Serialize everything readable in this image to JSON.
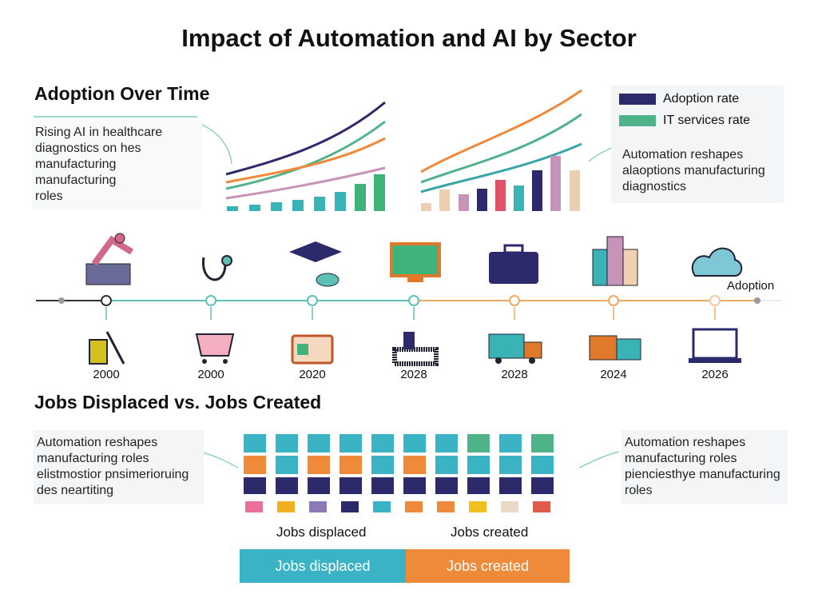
{
  "title": "Impact of Automation and AI by Sector",
  "adoption": {
    "heading": "Adoption Over Time",
    "note_left": [
      "Rising AI in healthcare",
      "diagnostics on hes",
      "manufacturing manufacturing",
      "roles"
    ],
    "legend": [
      "Adoption rate",
      "IT services rate"
    ],
    "note_right": [
      "Automation reshapes",
      "alaoptions manufacturing",
      "diagnostics"
    ]
  },
  "timeline": {
    "label": "Adoption",
    "years": [
      "2000",
      "2000",
      "2020",
      "2028",
      "2028",
      "2024",
      "2026"
    ]
  },
  "jobs": {
    "heading": "Jobs Displaced vs. Jobs Created",
    "note_left": [
      "Automation reshapes",
      "manufacturing roles",
      "elistmostior pnsimerioruing",
      "des neartiting"
    ],
    "note_right": [
      "Automation reshapes",
      "manufacturing roles",
      "piencіesthye manufacturing",
      "roles"
    ],
    "labels": [
      "Jobs displaced",
      "Jobs created"
    ],
    "bar": [
      "Jobs displaced",
      "Jobs created"
    ]
  }
}
